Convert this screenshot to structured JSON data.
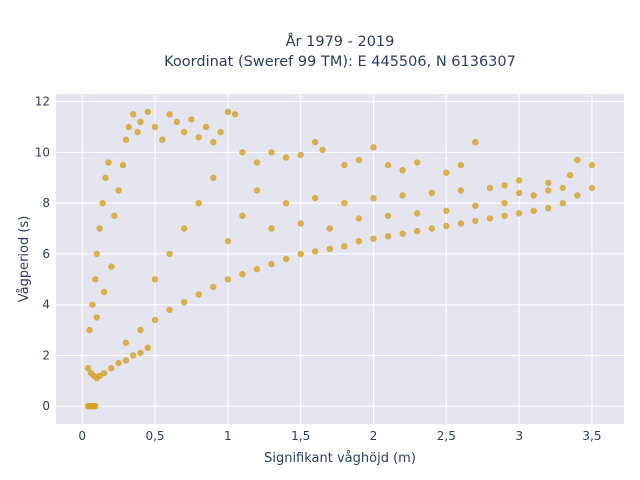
{
  "chart_data": {
    "type": "scatter",
    "title": "År 1979 - 2019",
    "subtitle": "Koordinat (Sweref 99 TM): E 445506, N 6136307",
    "xlabel": "Signifikant våghöjd (m)",
    "ylabel": "Vågperiod (s)",
    "xlim": [
      -0.18,
      3.72
    ],
    "ylim": [
      -0.7,
      12.3
    ],
    "x_ticks": [
      0,
      0.5,
      1,
      1.5,
      2,
      2.5,
      3,
      3.5
    ],
    "x_tick_labels": [
      "0",
      "0,5",
      "1",
      "1,5",
      "2",
      "2,5",
      "3",
      "3,5"
    ],
    "y_ticks": [
      0,
      2,
      4,
      6,
      8,
      10,
      12
    ],
    "y_tick_labels": [
      "0",
      "2",
      "4",
      "6",
      "8",
      "10",
      "12"
    ],
    "grid": true,
    "legend": "none",
    "marker_color": "#d4a21e",
    "plot_bg": "#e5e5f0",
    "series": [
      {
        "points": [
          [
            0.04,
            0
          ],
          [
            0.05,
            0
          ],
          [
            0.06,
            0
          ],
          [
            0.07,
            0
          ],
          [
            0.08,
            0
          ],
          [
            0.09,
            0
          ],
          [
            0.04,
            1.5
          ],
          [
            0.06,
            1.3
          ],
          [
            0.08,
            1.2
          ],
          [
            0.1,
            1.1
          ],
          [
            0.12,
            1.2
          ],
          [
            0.15,
            1.3
          ],
          [
            0.2,
            1.5
          ],
          [
            0.25,
            1.7
          ],
          [
            0.3,
            1.8
          ],
          [
            0.35,
            2.0
          ],
          [
            0.4,
            2.1
          ],
          [
            0.45,
            2.3
          ],
          [
            0.05,
            3.0
          ],
          [
            0.07,
            4.0
          ],
          [
            0.09,
            5.0
          ],
          [
            0.1,
            6.0
          ],
          [
            0.12,
            7.0
          ],
          [
            0.14,
            8.0
          ],
          [
            0.16,
            9.0
          ],
          [
            0.18,
            9.6
          ],
          [
            0.1,
            3.5
          ],
          [
            0.15,
            4.5
          ],
          [
            0.2,
            5.5
          ],
          [
            0.22,
            7.5
          ],
          [
            0.25,
            8.5
          ],
          [
            0.28,
            9.5
          ],
          [
            0.3,
            10.5
          ],
          [
            0.32,
            11.0
          ],
          [
            0.35,
            11.5
          ],
          [
            0.38,
            10.8
          ],
          [
            0.4,
            11.2
          ],
          [
            0.45,
            11.6
          ],
          [
            0.5,
            11.0
          ],
          [
            0.55,
            10.5
          ],
          [
            0.6,
            11.5
          ],
          [
            0.65,
            11.2
          ],
          [
            0.7,
            10.8
          ],
          [
            0.75,
            11.3
          ],
          [
            0.8,
            10.6
          ],
          [
            0.85,
            11.0
          ],
          [
            0.9,
            10.4
          ],
          [
            0.95,
            10.8
          ],
          [
            1.0,
            11.6
          ],
          [
            1.05,
            11.5
          ],
          [
            1.1,
            10.0
          ],
          [
            1.2,
            9.6
          ],
          [
            1.3,
            10.0
          ],
          [
            1.4,
            9.8
          ],
          [
            1.5,
            9.9
          ],
          [
            1.6,
            10.4
          ],
          [
            1.65,
            10.1
          ],
          [
            1.8,
            9.5
          ],
          [
            1.9,
            9.7
          ],
          [
            2.0,
            10.2
          ],
          [
            2.1,
            9.5
          ],
          [
            2.2,
            9.3
          ],
          [
            2.3,
            9.6
          ],
          [
            2.5,
            9.2
          ],
          [
            2.6,
            9.5
          ],
          [
            2.7,
            10.4
          ],
          [
            2.9,
            8.7
          ],
          [
            3.0,
            8.9
          ],
          [
            3.2,
            8.8
          ],
          [
            3.35,
            9.1
          ],
          [
            3.4,
            9.7
          ],
          [
            3.5,
            9.5
          ],
          [
            0.3,
            2.5
          ],
          [
            0.4,
            3.0
          ],
          [
            0.5,
            3.4
          ],
          [
            0.6,
            3.8
          ],
          [
            0.7,
            4.1
          ],
          [
            0.8,
            4.4
          ],
          [
            0.9,
            4.7
          ],
          [
            1.0,
            5.0
          ],
          [
            1.1,
            5.2
          ],
          [
            1.2,
            5.4
          ],
          [
            1.3,
            5.6
          ],
          [
            1.4,
            5.8
          ],
          [
            1.5,
            6.0
          ],
          [
            1.6,
            6.1
          ],
          [
            1.7,
            6.2
          ],
          [
            1.8,
            6.3
          ],
          [
            1.9,
            6.5
          ],
          [
            2.0,
            6.6
          ],
          [
            2.1,
            6.7
          ],
          [
            2.2,
            6.8
          ],
          [
            2.3,
            6.9
          ],
          [
            2.4,
            7.0
          ],
          [
            2.5,
            7.1
          ],
          [
            2.6,
            7.2
          ],
          [
            2.7,
            7.3
          ],
          [
            2.8,
            7.4
          ],
          [
            2.9,
            7.5
          ],
          [
            3.0,
            7.6
          ],
          [
            3.1,
            7.7
          ],
          [
            3.2,
            7.8
          ],
          [
            3.3,
            8.0
          ],
          [
            3.4,
            8.3
          ],
          [
            3.5,
            8.6
          ],
          [
            0.5,
            5.0
          ],
          [
            0.6,
            6.0
          ],
          [
            0.7,
            7.0
          ],
          [
            0.8,
            8.0
          ],
          [
            0.9,
            9.0
          ],
          [
            1.0,
            6.5
          ],
          [
            1.1,
            7.5
          ],
          [
            1.2,
            8.5
          ],
          [
            1.3,
            7.0
          ],
          [
            1.4,
            8.0
          ],
          [
            1.5,
            7.2
          ],
          [
            1.6,
            8.2
          ],
          [
            1.7,
            7.0
          ],
          [
            1.8,
            8.0
          ],
          [
            1.9,
            7.4
          ],
          [
            2.0,
            8.2
          ],
          [
            2.1,
            7.5
          ],
          [
            2.2,
            8.3
          ],
          [
            2.3,
            7.6
          ],
          [
            2.4,
            8.4
          ],
          [
            2.5,
            7.7
          ],
          [
            2.6,
            8.5
          ],
          [
            2.7,
            7.9
          ],
          [
            2.8,
            8.6
          ],
          [
            2.9,
            8.0
          ],
          [
            3.0,
            8.4
          ],
          [
            3.1,
            8.3
          ],
          [
            3.2,
            8.5
          ],
          [
            3.3,
            8.6
          ]
        ]
      }
    ]
  }
}
